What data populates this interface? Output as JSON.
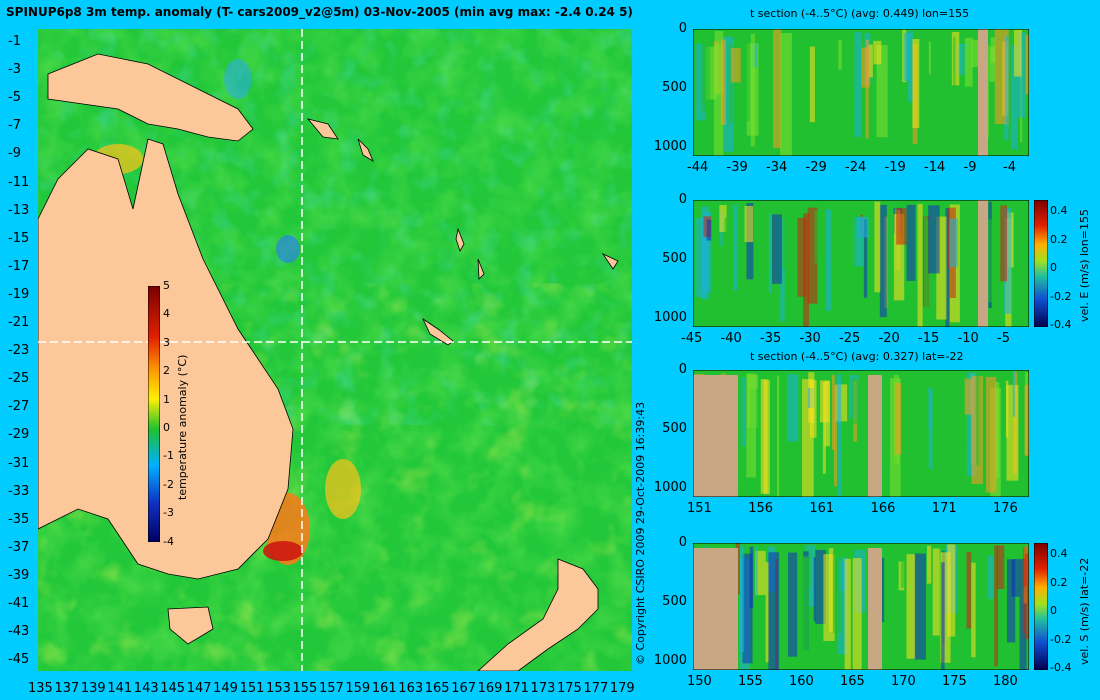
{
  "header": {
    "title": "SPINUP6p8 3m temp. anomaly (T- cars2009_v2@5m) 03-Nov-2005 (min avg max: -2.4 0.24 5)"
  },
  "map": {
    "lat_ticks": [
      "-1",
      "-3",
      "-5",
      "-7",
      "-9",
      "-11",
      "-13",
      "-15",
      "-17",
      "-19",
      "-21",
      "-23",
      "-25",
      "-27",
      "-29",
      "-31",
      "-33",
      "-35",
      "-37",
      "-39",
      "-41",
      "-43",
      "-45"
    ],
    "lon_ticks": [
      "135",
      "137",
      "139",
      "141",
      "143",
      "145",
      "147",
      "149",
      "151",
      "153",
      "155",
      "157",
      "159",
      "161",
      "163",
      "165",
      "167",
      "169",
      "171",
      "173",
      "175",
      "177",
      "179"
    ],
    "colorbar": {
      "label": "temperature anomaly (°C)",
      "ticks": [
        "5",
        "4",
        "3",
        "2",
        "1",
        "0",
        "-1",
        "-2",
        "-3",
        "-4"
      ]
    },
    "crosshair": {
      "lon": 155,
      "lat": -22
    },
    "copyright": "© Copyright CSIRO 2009   29-Oct-2009 16:39:43"
  },
  "panels": [
    {
      "title": "t section (-4..5°C) (avg: 0.449) lon=155",
      "y_ticks": [
        "0",
        "500",
        "1000"
      ],
      "x_ticks": [
        "-44",
        "-39",
        "-34",
        "-29",
        "-24",
        "-19",
        "-14",
        "-9",
        "-4"
      ],
      "colorbar": null
    },
    {
      "title": "",
      "y_ticks": [
        "0",
        "500",
        "1000"
      ],
      "x_ticks": [
        "-45",
        "-40",
        "-35",
        "-30",
        "-25",
        "-20",
        "-15",
        "-10",
        "-5"
      ],
      "colorbar": {
        "label": "vel. E (m/s) lon=155",
        "ticks": [
          "0.4",
          "0.2",
          "0",
          "-0.2",
          "-0.4"
        ]
      }
    },
    {
      "title": "t section (-4..5°C) (avg: 0.327) lat=-22",
      "y_ticks": [
        "0",
        "500",
        "1000"
      ],
      "x_ticks": [
        "151",
        "156",
        "161",
        "166",
        "171",
        "176"
      ],
      "colorbar": null
    },
    {
      "title": "",
      "y_ticks": [
        "0",
        "500",
        "1000"
      ],
      "x_ticks": [
        "150",
        "155",
        "160",
        "165",
        "170",
        "175",
        "180"
      ],
      "colorbar": {
        "label": "vel. S (m/s) lat=-22",
        "ticks": [
          "0.4",
          "0.2",
          "0",
          "-0.2",
          "-0.4"
        ]
      }
    }
  ],
  "chart_data": [
    {
      "type": "heatmap",
      "title": "SPINUP6p8 3m temp. anomaly (T- cars2009_v2@5m) 03-Nov-2005 (min avg max: -2.4 0.24 5)",
      "xlabel": "",
      "ylabel": "",
      "xlim": [
        135,
        180
      ],
      "ylim": [
        -45,
        0
      ],
      "colorbar": {
        "label": "temperature anomaly (°C)",
        "range": [
          -4,
          5
        ]
      },
      "stats": {
        "min": -2.4,
        "avg": 0.24,
        "max": 5
      }
    },
    {
      "type": "heatmap",
      "title": "t section (-4..5°C) (avg: 0.449) lon=155",
      "xlim": [
        -45,
        0
      ],
      "ylim": [
        1050,
        0
      ],
      "avg": 0.449
    },
    {
      "type": "heatmap",
      "title": "",
      "xlim": [
        -45,
        0
      ],
      "ylim": [
        1050,
        0
      ],
      "colorbar": {
        "label": "vel. E (m/s) lon=155",
        "range": [
          -0.4,
          0.4
        ]
      }
    },
    {
      "type": "heatmap",
      "title": "t section (-4..5°C) (avg: 0.327) lat=-22",
      "xlim": [
        150,
        180
      ],
      "ylim": [
        1050,
        0
      ],
      "avg": 0.327
    },
    {
      "type": "heatmap",
      "title": "",
      "xlim": [
        150,
        180
      ],
      "ylim": [
        1050,
        0
      ],
      "colorbar": {
        "label": "vel. S (m/s) lat=-22",
        "range": [
          -0.4,
          0.4
        ]
      }
    }
  ]
}
